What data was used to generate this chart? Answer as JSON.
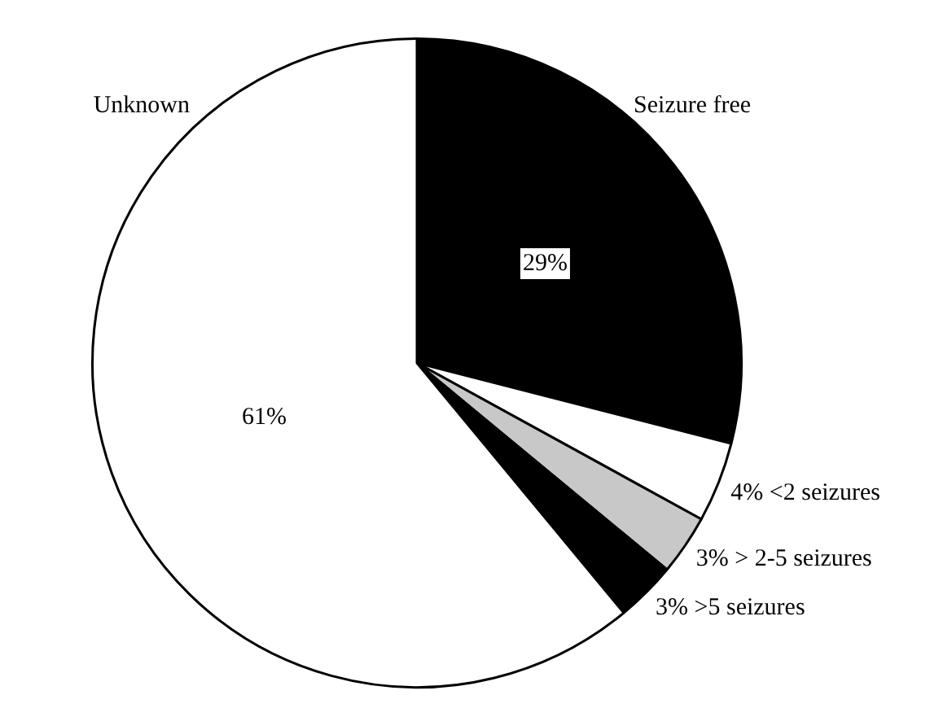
{
  "chart_data": {
    "type": "pie",
    "categories": [
      "Seizure free",
      "<2 seizures",
      "> 2-5 seizures",
      ">5 seizures",
      "Unknown"
    ],
    "values": [
      29,
      4,
      3,
      3,
      61
    ],
    "value_labels": [
      "29%",
      "4%",
      "3%",
      "3%",
      "61%"
    ],
    "colors": [
      "#000000",
      "#ffffff",
      "#c8c8c8",
      "#000000",
      "#ffffff"
    ],
    "legend": false
  }
}
